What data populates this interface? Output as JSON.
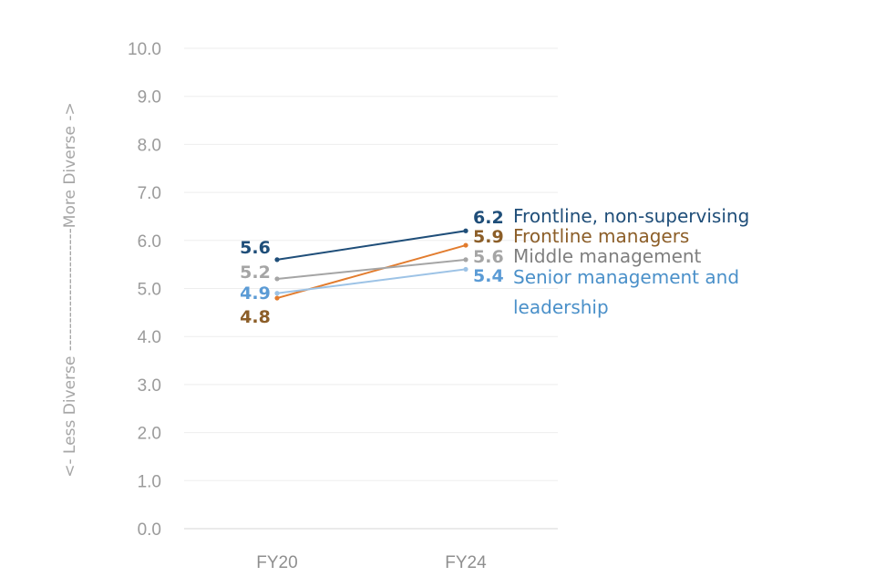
{
  "chart_data": {
    "type": "line",
    "title": "",
    "xlabel": "",
    "ylabel": "<- Less Diverse ----------------------More Diverse ->",
    "categories": [
      "FY20",
      "FY24"
    ],
    "ylim": [
      0,
      10
    ],
    "yticks": [
      "0.0",
      "1.0",
      "2.0",
      "3.0",
      "4.0",
      "5.0",
      "6.0",
      "7.0",
      "8.0",
      "9.0",
      "10.0"
    ],
    "grid": true,
    "legend": "none",
    "series": [
      {
        "name": "Frontline, non-supervising",
        "name_lines": [
          "Frontline, non-supervising"
        ],
        "values": [
          5.6,
          6.2
        ],
        "start_label": "5.6",
        "end_label": "6.2",
        "color": "#1f4e79"
      },
      {
        "name": "Frontline managers",
        "name_lines": [
          "Frontline managers"
        ],
        "values": [
          4.8,
          5.9
        ],
        "start_label": "4.8",
        "end_label": "5.9",
        "color": "#e27c2e",
        "label_color": "#8c5e28"
      },
      {
        "name": "Middle management",
        "name_lines": [
          "Middle management"
        ],
        "values": [
          5.2,
          5.6
        ],
        "start_label": "5.2",
        "end_label": "5.6",
        "color": "#a5a5a5",
        "label_color": "#7f7f7f",
        "value_color": "#a5a5a5"
      },
      {
        "name": "Senior management and leadership",
        "name_lines": [
          "Senior management and",
          "leadership"
        ],
        "values": [
          4.9,
          5.4
        ],
        "start_label": "4.9",
        "end_label": "5.4",
        "color": "#9dc3e6",
        "label_color": "#4a90c9",
        "value_color": "#5b9bd5"
      }
    ]
  }
}
